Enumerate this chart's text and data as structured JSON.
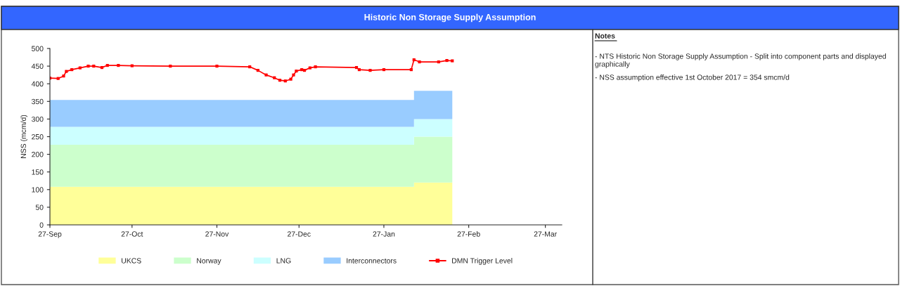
{
  "chart_data": {
    "type": "area",
    "title": "Historic Non Storage Supply Assumption",
    "ylabel": "NSS (mcm/d)",
    "stacked": true,
    "x": [
      "2017-09-27",
      "2018-02-07",
      "2018-02-07",
      "2018-02-21"
    ],
    "series": [
      {
        "name": "UKCS",
        "color": "#ffff99",
        "values": [
          108,
          108,
          120,
          120
        ]
      },
      {
        "name": "Norway",
        "color": "#ccffcc",
        "values": [
          119,
          119,
          130,
          130
        ]
      },
      {
        "name": "LNG",
        "color": "#ccffff",
        "values": [
          51,
          51,
          50,
          50
        ]
      },
      {
        "name": "Interconnectors",
        "color": "#99ccff",
        "values": [
          76,
          76,
          80,
          80
        ]
      },
      {
        "name": "DMN Trigger Level",
        "type": "line",
        "color": "#ff0000",
        "marker": "square",
        "line_style": "solid",
        "x": [
          "2017-09-27",
          "2017-09-30",
          "2017-10-02",
          "2017-10-03",
          "2017-10-05",
          "2017-10-08",
          "2017-10-11",
          "2017-10-13",
          "2017-10-16",
          "2017-10-18",
          "2017-10-22",
          "2017-10-27",
          "2017-11-10",
          "2017-11-27",
          "2017-12-09",
          "2017-12-12",
          "2017-12-15",
          "2017-12-18",
          "2017-12-20",
          "2017-12-22",
          "2017-12-24",
          "2017-12-25",
          "2017-12-26",
          "2017-12-28",
          "2017-12-29",
          "2017-12-31",
          "2018-01-02",
          "2018-01-17",
          "2018-01-18",
          "2018-01-22",
          "2018-01-27",
          "2018-02-06",
          "2018-02-07",
          "2018-02-09",
          "2018-02-16",
          "2018-02-19",
          "2018-02-21"
        ],
        "values": [
          416,
          415,
          422,
          435,
          440,
          445,
          450,
          450,
          446,
          452,
          452,
          451,
          450,
          450,
          448,
          438,
          425,
          417,
          410,
          408,
          413,
          425,
          436,
          440,
          438,
          445,
          448,
          446,
          440,
          438,
          440,
          440,
          468,
          462,
          462,
          466,
          465
        ]
      }
    ],
    "xlim": [
      "2017-09-27",
      "2018-04-02"
    ],
    "xticks": [
      {
        "value": "2017-09-27",
        "label": "27-Sep"
      },
      {
        "value": "2017-10-27",
        "label": "27-Oct"
      },
      {
        "value": "2017-11-27",
        "label": "27-Nov"
      },
      {
        "value": "2017-12-27",
        "label": "27-Dec"
      },
      {
        "value": "2018-01-27",
        "label": "27-Jan"
      },
      {
        "value": "2018-02-27",
        "label": "27-Feb"
      },
      {
        "value": "2018-03-27",
        "label": "27-Mar"
      }
    ],
    "ylim": [
      0,
      500
    ],
    "yticks": [
      0,
      50,
      100,
      150,
      200,
      250,
      300,
      350,
      400,
      450,
      500
    ],
    "grid": false,
    "legend": "bottom",
    "annotations": [
      "Notes",
      "- NTS Historic Non Storage Supply Assumption - Split into component parts and displayed graphically",
      "- NSS assumption effective 1st October 2017 = 354 smcm/d"
    ]
  }
}
